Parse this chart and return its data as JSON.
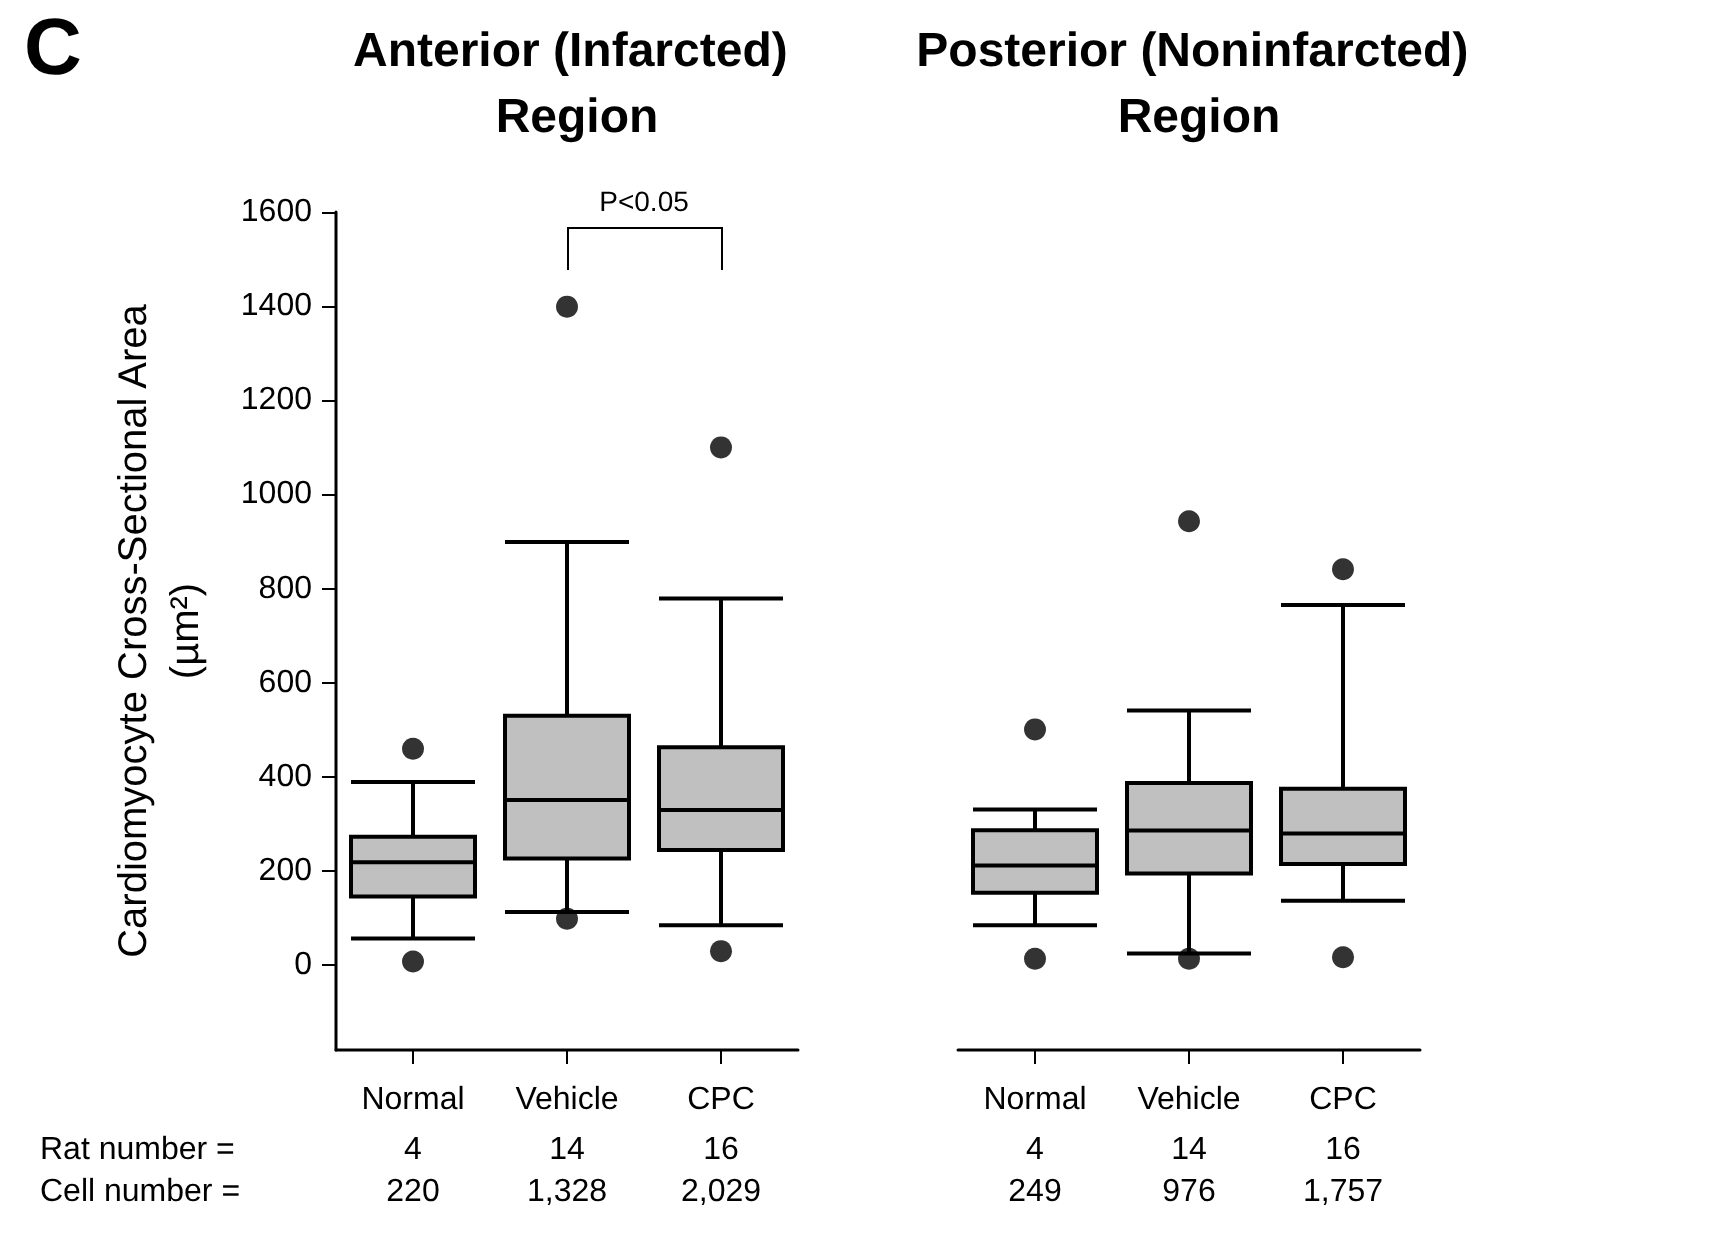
{
  "chart_data": [
    {
      "type": "box",
      "title": "Anterior (Infarcted) Region",
      "ylabel": "Cardiomyocyte Cross-Sectional Area (µm²)",
      "categories": [
        "Normal",
        "Vehicle",
        "CPC"
      ],
      "color": "#c0c0c0",
      "boxes": [
        {
          "low": 57,
          "q1": 146,
          "median": 219,
          "q3": 273,
          "high": 389,
          "outliers": [
            460,
            8
          ]
        },
        {
          "low": 113,
          "q1": 227,
          "median": 351,
          "q3": 530,
          "high": 899,
          "outliers": [
            1399,
            99
          ]
        },
        {
          "low": 85,
          "q1": 245,
          "median": 330,
          "q3": 463,
          "high": 779,
          "outliers": [
            1100,
            30
          ]
        }
      ],
      "ylim": [
        -180,
        1600
      ],
      "yticks": [
        0,
        200,
        400,
        600,
        800,
        1000,
        1200,
        1400,
        1600
      ],
      "annotations": [
        "C",
        "P<0.05",
        "Rat number =",
        "Cell number =",
        "4",
        "14",
        "16",
        "220",
        "1,328",
        "2,029"
      ]
    },
    {
      "type": "box",
      "title": "Posterior (Noninfarcted) Region",
      "categories": [
        "Normal",
        "Vehicle",
        "CPC"
      ],
      "color": "#c0c0c0",
      "boxes": [
        {
          "low": 85,
          "q1": 154,
          "median": 212,
          "q3": 287,
          "high": 331,
          "outliers": [
            501,
            14
          ]
        },
        {
          "low": 25,
          "q1": 195,
          "median": 286,
          "q3": 387,
          "high": 541,
          "outliers": [
            943,
            14
          ]
        },
        {
          "low": 137,
          "q1": 215,
          "median": 280,
          "q3": 375,
          "high": 765,
          "outliers": [
            841,
            17
          ]
        }
      ],
      "ylim": [
        -180,
        1600
      ],
      "yticks": [
        0,
        200,
        400,
        600,
        800,
        1000,
        1200,
        1400,
        1600
      ],
      "tick_labels": "x",
      "annotations": [
        "4",
        "14",
        "16",
        "249",
        "976",
        "1,757"
      ]
    }
  ]
}
